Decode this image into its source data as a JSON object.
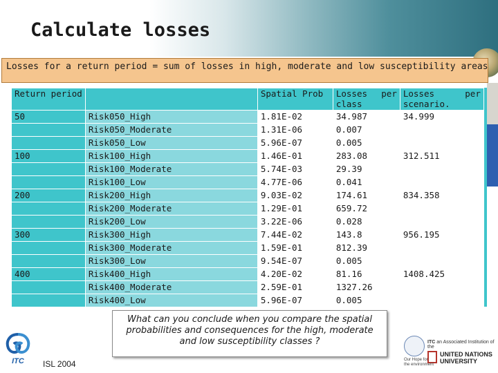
{
  "slide": {
    "title": "Calculate losses",
    "subtitle": "Losses for a return period = sum of losses in high, moderate and low susceptibility areas",
    "question": "What can you conclude when you compare the spatial probabilities and consequences for the high, moderate and low susceptibility classes ?",
    "footer": "ISL 2004",
    "itc_logo_text": "ITC",
    "partner": {
      "line1": "ITC",
      "line1_small": "an Associated Institution of the",
      "line2a": "UNITED NATIONS",
      "line2b": "UNIVERSITY",
      "small_a": "Our Hope for",
      "small_b": "the environment"
    }
  },
  "table": {
    "headers": {
      "return_period": "Return period",
      "spatial_prob": "Spatial Prob",
      "losses_class_a": "Losses",
      "losses_class_b": "per",
      "losses_class_c": "class",
      "losses_scen_a": "Losses",
      "losses_scen_b": "per",
      "losses_scen_c": "scenario."
    },
    "rows": [
      {
        "period": "50",
        "name": "Risk050_High",
        "prob": "1.81E-02",
        "loss": "34.987",
        "scenario": "34.999"
      },
      {
        "period": "",
        "name": "Risk050_Moderate",
        "prob": "1.31E-06",
        "loss": "0.007",
        "scenario": ""
      },
      {
        "period": "",
        "name": "Risk050_Low",
        "prob": "5.96E-07",
        "loss": "0.005",
        "scenario": ""
      },
      {
        "period": "100",
        "name": "Risk100_High",
        "prob": "1.46E-01",
        "loss": "283.08",
        "scenario": "312.511"
      },
      {
        "period": "",
        "name": "Risk100_Moderate",
        "prob": "5.74E-03",
        "loss": "29.39",
        "scenario": ""
      },
      {
        "period": "",
        "name": "Risk100_Low",
        "prob": "4.77E-06",
        "loss": "0.041",
        "scenario": ""
      },
      {
        "period": "200",
        "name": "Risk200_High",
        "prob": "9.03E-02",
        "loss": "174.61",
        "scenario": "834.358"
      },
      {
        "period": "",
        "name": "Risk200_Moderate",
        "prob": "1.29E-01",
        "loss": "659.72",
        "scenario": ""
      },
      {
        "period": "",
        "name": "Risk200_Low",
        "prob": "3.22E-06",
        "loss": "0.028",
        "scenario": ""
      },
      {
        "period": "300",
        "name": "Risk300_High",
        "prob": "7.44E-02",
        "loss": "143.8",
        "scenario": "956.195"
      },
      {
        "period": "",
        "name": "Risk300_Moderate",
        "prob": "1.59E-01",
        "loss": "812.39",
        "scenario": ""
      },
      {
        "period": "",
        "name": "Risk300_Low",
        "prob": "9.54E-07",
        "loss": "0.005",
        "scenario": ""
      },
      {
        "period": "400",
        "name": "Risk400_High",
        "prob": "4.20E-02",
        "loss": "81.16",
        "scenario": "1408.425"
      },
      {
        "period": "",
        "name": "Risk400_Moderate",
        "prob": "2.59E-01",
        "loss": "1327.26",
        "scenario": ""
      },
      {
        "period": "",
        "name": "Risk400_Low",
        "prob": "5.96E-07",
        "loss": "0.005",
        "scenario": ""
      }
    ]
  },
  "colors": {
    "table_period_column": "#3fc5cb",
    "table_name_column": "#8ad8de",
    "subtitle_box": "#f5c58e"
  }
}
